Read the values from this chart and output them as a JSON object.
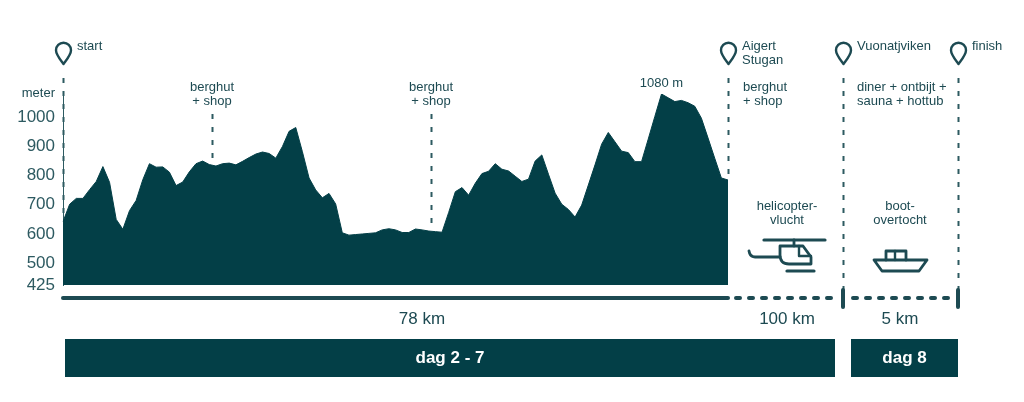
{
  "chart_data": {
    "type": "area",
    "categories": [
      null,
      null,
      null,
      null,
      null,
      null,
      null,
      null,
      null,
      null,
      null,
      null,
      null,
      null,
      null,
      null,
      null,
      null,
      null,
      null,
      null,
      null,
      null,
      null,
      null,
      null,
      null,
      null,
      null,
      null,
      null,
      null,
      null,
      null,
      null,
      null,
      null,
      null,
      null,
      null,
      null,
      null,
      null,
      null,
      null,
      null,
      null,
      null,
      null,
      null,
      null,
      null,
      null,
      null,
      null,
      null,
      null,
      null,
      null,
      null,
      null,
      null,
      null,
      null,
      null,
      null,
      null,
      null,
      null,
      null,
      null,
      null,
      null,
      null,
      null,
      null,
      null,
      null,
      null,
      null,
      null,
      null,
      null,
      null,
      null,
      null,
      null,
      null,
      null,
      null,
      null,
      null,
      null,
      null,
      null,
      null,
      null,
      null,
      null,
      null,
      null
    ],
    "values": [
      642,
      702,
      722,
      722,
      752,
      780,
      831,
      777,
      650,
      616,
      680,
      715,
      786,
      841,
      829,
      830,
      812,
      766,
      778,
      813,
      841,
      850,
      838,
      833,
      841,
      843,
      837,
      849,
      862,
      874,
      881,
      876,
      860,
      900,
      952,
      965,
      882,
      792,
      751,
      724,
      739,
      703,
      604,
      596,
      598,
      600,
      602,
      604,
      614,
      618,
      614,
      605,
      605,
      617,
      614,
      610,
      608,
      606,
      674,
      745,
      759,
      733,
      774,
      807,
      815,
      841,
      822,
      816,
      798,
      780,
      788,
      850,
      871,
      805,
      740,
      702,
      684,
      658,
      699,
      768,
      837,
      908,
      948,
      916,
      884,
      879,
      848,
      848,
      925,
      1003,
      1080,
      1067,
      1054,
      1058,
      1050,
      1038,
      997,
      929,
      860,
      792,
      785
    ],
    "value_labels": [
      null,
      null,
      null,
      null,
      null,
      null,
      null,
      null,
      null,
      null,
      null,
      null,
      null,
      null,
      null,
      null,
      null,
      null,
      null,
      null,
      null,
      null,
      null,
      null,
      null,
      null,
      null,
      null,
      null,
      null,
      null,
      null,
      null,
      null,
      null,
      null,
      null,
      null,
      null,
      null,
      null,
      null,
      null,
      null,
      null,
      null,
      null,
      null,
      null,
      null,
      null,
      null,
      null,
      null,
      null,
      null,
      null,
      null,
      null,
      null,
      null,
      null,
      null,
      null,
      null,
      null,
      null,
      null,
      null,
      null,
      null,
      null,
      null,
      null,
      null,
      null,
      null,
      null,
      null,
      null,
      null,
      null,
      null,
      null,
      null,
      null,
      null,
      null,
      null,
      null,
      "1080 m",
      null,
      null,
      null,
      null,
      null,
      null,
      null,
      null,
      null,
      null
    ],
    "color": "#033f47",
    "ylabel": "meter",
    "ylim": [
      425,
      1080
    ],
    "yticks": [
      425,
      500,
      600,
      700,
      800,
      900,
      1000
    ],
    "tick_labels": "y",
    "annotations": [
      "start",
      "berghut\n+ shop",
      "berghut\n+ shop",
      "Aigert\nStugan",
      "berghut\n+ shop",
      "Vuonatjviken",
      "diner + ontbijt +\nsauna + hottub",
      "finish",
      "helicopter-\nvlucht",
      "boot-\novertocht",
      "78 km",
      "100 km",
      "5 km",
      "dag 2 - 7",
      "dag 8"
    ]
  }
}
